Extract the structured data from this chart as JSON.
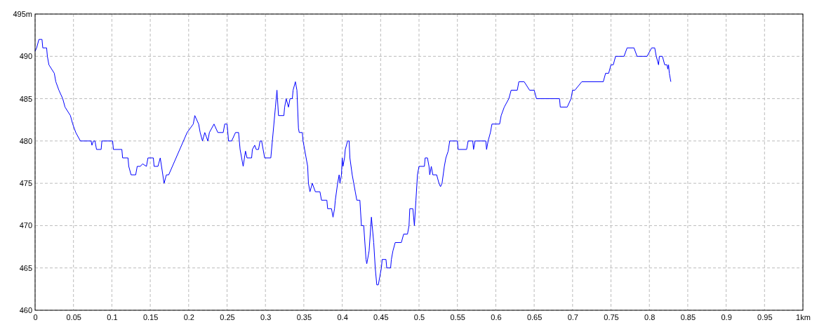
{
  "chart_data": {
    "type": "line",
    "x": [
      0,
      0.002,
      0.005,
      0.009,
      0.01,
      0.015,
      0.016,
      0.018,
      0.025,
      0.027,
      0.031,
      0.036,
      0.039,
      0.046,
      0.049,
      0.053,
      0.059,
      0.073,
      0.074,
      0.076,
      0.078,
      0.08,
      0.086,
      0.087,
      0.101,
      0.102,
      0.113,
      0.114,
      0.121,
      0.122,
      0.125,
      0.131,
      0.133,
      0.137,
      0.14,
      0.145,
      0.147,
      0.154,
      0.155,
      0.16,
      0.163,
      0.168,
      0.171,
      0.174,
      0.198,
      0.206,
      0.208,
      0.213,
      0.215,
      0.218,
      0.221,
      0.225,
      0.227,
      0.233,
      0.238,
      0.245,
      0.247,
      0.25,
      0.252,
      0.256,
      0.261,
      0.265,
      0.267,
      0.271,
      0.274,
      0.276,
      0.282,
      0.283,
      0.286,
      0.288,
      0.291,
      0.293,
      0.295,
      0.297,
      0.299,
      0.307,
      0.313,
      0.314,
      0.315,
      0.317,
      0.324,
      0.325,
      0.327,
      0.33,
      0.332,
      0.335,
      0.336,
      0.339,
      0.341,
      0.343,
      0.344,
      0.348,
      0.349,
      0.351,
      0.353,
      0.355,
      0.356,
      0.358,
      0.361,
      0.365,
      0.371,
      0.373,
      0.38,
      0.381,
      0.386,
      0.388,
      0.39,
      0.391,
      0.394,
      0.396,
      0.397,
      0.399,
      0.4,
      0.401,
      0.403,
      0.404,
      0.407,
      0.409,
      0.41,
      0.413,
      0.415,
      0.417,
      0.419,
      0.423,
      0.425,
      0.428,
      0.431,
      0.432,
      0.435,
      0.438,
      0.441,
      0.443,
      0.445,
      0.447,
      0.449,
      0.451,
      0.452,
      0.457,
      0.458,
      0.463,
      0.464,
      0.466,
      0.469,
      0.477,
      0.48,
      0.485,
      0.487,
      0.488,
      0.492,
      0.494,
      0.496,
      0.498,
      0.5,
      0.507,
      0.508,
      0.511,
      0.513,
      0.514,
      0.516,
      0.518,
      0.523,
      0.526,
      0.528,
      0.53,
      0.533,
      0.535,
      0.538,
      0.54,
      0.55,
      0.551,
      0.562,
      0.564,
      0.57,
      0.571,
      0.573,
      0.587,
      0.588,
      0.59,
      0.593,
      0.595,
      0.605,
      0.607,
      0.611,
      0.617,
      0.62,
      0.628,
      0.63,
      0.637,
      0.644,
      0.65,
      0.653,
      0.683,
      0.684,
      0.693,
      0.698,
      0.7,
      0.703,
      0.712,
      0.74,
      0.743,
      0.747,
      0.75,
      0.753,
      0.756,
      0.767,
      0.771,
      0.78,
      0.784,
      0.797,
      0.803,
      0.807,
      0.809,
      0.812,
      0.813,
      0.817,
      0.82,
      0.823,
      0.824,
      0.825,
      0.826,
      0.828
    ],
    "series": [
      {
        "color": "#0000ff",
        "values": [
          490.6,
          491,
          492,
          492,
          491,
          491,
          490,
          489,
          488,
          487,
          486,
          485,
          484,
          483,
          482,
          481,
          480,
          480,
          479.5,
          480,
          480,
          479,
          479,
          480,
          480,
          479,
          479,
          478,
          478,
          477,
          476,
          476,
          477,
          477,
          477.3,
          477,
          478,
          478,
          477,
          477,
          478,
          475,
          476,
          476,
          481,
          482,
          483,
          482,
          481,
          480,
          481,
          480,
          481,
          482,
          481,
          481,
          482,
          482,
          480,
          480,
          481,
          481,
          479,
          477,
          478.8,
          478,
          478,
          479,
          479.5,
          479,
          479,
          480,
          480,
          479,
          478,
          478,
          484,
          485,
          486,
          483,
          483,
          484,
          485,
          484,
          485,
          485,
          486,
          487,
          486,
          481.5,
          481,
          481,
          480,
          479,
          478,
          477,
          475,
          474,
          475,
          474,
          474,
          473,
          473,
          472,
          472,
          471,
          472,
          473,
          475,
          476,
          475,
          476,
          478,
          477,
          478,
          479,
          480,
          480,
          478,
          476,
          475,
          474,
          473,
          473,
          470,
          470,
          466,
          465.5,
          467,
          471,
          468,
          465,
          463,
          463,
          464,
          465,
          466,
          466,
          465,
          465,
          466,
          467,
          468,
          468,
          469,
          469,
          470,
          472,
          472,
          470,
          473,
          476,
          477,
          477,
          478,
          478,
          477,
          476,
          477,
          476,
          476,
          475,
          474.6,
          475,
          477,
          478,
          478.8,
          480,
          480,
          479,
          479,
          480,
          480,
          479,
          480,
          480,
          479,
          480,
          481,
          482,
          482,
          483,
          484,
          485,
          486,
          486,
          487,
          487,
          486,
          486,
          485,
          485,
          484,
          484,
          485,
          486,
          486,
          487,
          487,
          488,
          488,
          489,
          489,
          490,
          490,
          491,
          491,
          490,
          490,
          491,
          491,
          490,
          489,
          490,
          490,
          489,
          489,
          488.5,
          489,
          488,
          487
        ]
      }
    ],
    "xlim": [
      0,
      1
    ],
    "ylim": [
      460,
      495
    ],
    "xticks": [
      0,
      0.05,
      0.1,
      0.15,
      0.2,
      0.25,
      0.3,
      0.35,
      0.4,
      0.45,
      0.5,
      0.55,
      0.6,
      0.65,
      0.7,
      0.75,
      0.8,
      0.85,
      0.9,
      0.95,
      {
        "value": 1,
        "label": "1km"
      }
    ],
    "yticks": [
      460,
      465,
      470,
      475,
      480,
      485,
      490,
      {
        "value": 495,
        "label": "495m"
      }
    ],
    "grid": true,
    "line_style": "solid",
    "marker": "none"
  }
}
